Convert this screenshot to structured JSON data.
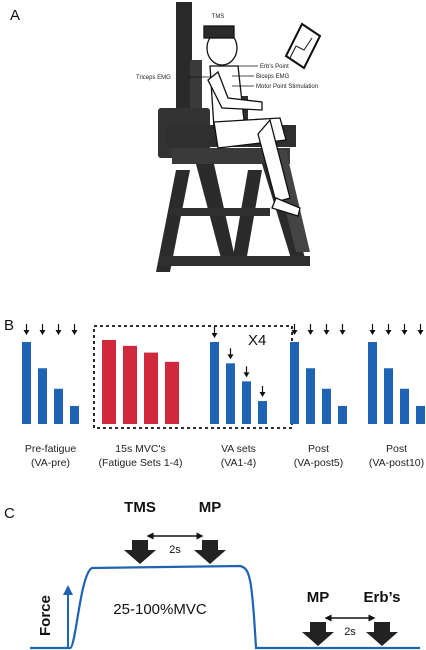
{
  "panel_a": {
    "letter": "A",
    "labels": {
      "tms": "TMS",
      "erbs_point": "Erb's Point",
      "triceps_emg": "Triceps EMG",
      "biceps_emg": "Biceps EMG",
      "motor_point": "Motor Point Stimulation"
    }
  },
  "panel_b": {
    "letter": "B",
    "multiplier": "X4",
    "colors": {
      "blue": "#1f63b5",
      "red": "#d0283c"
    },
    "groups": [
      {
        "line1": "Pre-fatigue",
        "line2": "(VA-pre)",
        "color": "blue",
        "bar_levels": [
          1.0,
          0.68,
          0.43,
          0.22
        ],
        "arrows": "above"
      },
      {
        "line1": "15s MVC's",
        "line2": "(Fatigue Sets 1-4)",
        "color": "red",
        "bar_levels": [
          1.0,
          0.93,
          0.85,
          0.74
        ],
        "arrows": "none"
      },
      {
        "line1": "VA sets",
        "line2": "(VA1-4)",
        "color": "blue",
        "bar_levels": [
          1.0,
          0.74,
          0.52,
          0.28
        ],
        "arrows": "stepped"
      },
      {
        "line1": "Post",
        "line2": "(VA-post5)",
        "color": "blue",
        "bar_levels": [
          1.0,
          0.68,
          0.43,
          0.22
        ],
        "arrows": "above"
      },
      {
        "line1": "Post",
        "line2": "(VA-post10)",
        "color": "blue",
        "bar_levels": [
          1.0,
          0.68,
          0.43,
          0.22
        ],
        "arrows": "above"
      }
    ]
  },
  "panel_c": {
    "letter": "C",
    "y_label": "Force",
    "tms": "TMS",
    "mp_left": "MP",
    "interval_left": "2s",
    "level": "25-100%MVC",
    "mp_right": "MP",
    "erbs": "Erb’s",
    "interval_right": "2s",
    "trace_color": "#1f63b5"
  }
}
